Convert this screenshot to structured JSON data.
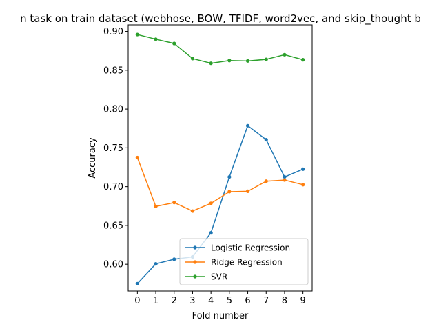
{
  "chart_data": {
    "type": "line",
    "title": "n task on train dataset (webhose, BOW, TFIDF, word2vec, and skip_thought b",
    "xlabel": "Fold number",
    "ylabel": "Accuracy",
    "x": [
      0,
      1,
      2,
      3,
      4,
      5,
      6,
      7,
      8,
      9
    ],
    "xlim": [
      -0.5,
      9.5
    ],
    "ylim": [
      0.5655,
      0.9085
    ],
    "xticks": [
      "0",
      "1",
      "2",
      "3",
      "4",
      "5",
      "6",
      "7",
      "8",
      "9"
    ],
    "yticks": [
      "0.60",
      "0.65",
      "0.70",
      "0.75",
      "0.80",
      "0.85",
      "0.90"
    ],
    "grid": false,
    "legend_position": "lower-right",
    "series": [
      {
        "name": "Logistic Regression",
        "color": "#1f77b4",
        "values": [
          0.575,
          0.6005,
          0.6065,
          0.6095,
          0.6405,
          0.7125,
          0.7785,
          0.7605,
          0.7125,
          0.7225
        ]
      },
      {
        "name": "Ridge Regression",
        "color": "#ff7f0e",
        "values": [
          0.7375,
          0.6745,
          0.6795,
          0.6685,
          0.6785,
          0.6935,
          0.694,
          0.707,
          0.7085,
          0.7025
        ]
      },
      {
        "name": "SVR",
        "color": "#2ca02c",
        "values": [
          0.896,
          0.89,
          0.8845,
          0.865,
          0.859,
          0.8625,
          0.862,
          0.864,
          0.87,
          0.8635
        ]
      }
    ]
  }
}
